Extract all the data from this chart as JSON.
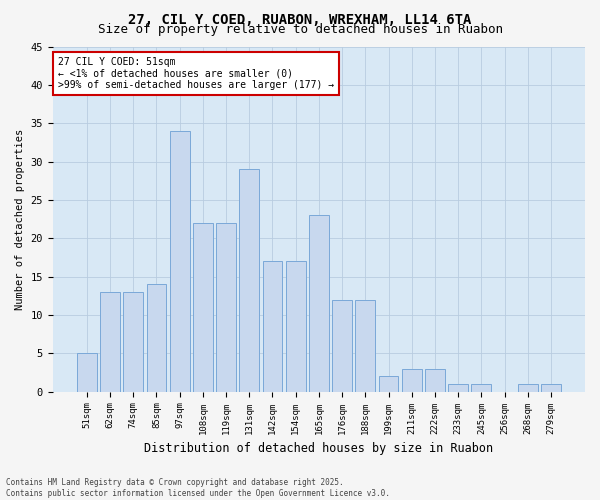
{
  "title": "27, CIL Y COED, RUABON, WREXHAM, LL14 6TA",
  "subtitle": "Size of property relative to detached houses in Ruabon",
  "xlabel": "Distribution of detached houses by size in Ruabon",
  "ylabel": "Number of detached properties",
  "categories": [
    "51sqm",
    "62sqm",
    "74sqm",
    "85sqm",
    "97sqm",
    "108sqm",
    "119sqm",
    "131sqm",
    "142sqm",
    "154sqm",
    "165sqm",
    "176sqm",
    "188sqm",
    "199sqm",
    "211sqm",
    "222sqm",
    "233sqm",
    "245sqm",
    "256sqm",
    "268sqm",
    "279sqm"
  ],
  "values": [
    5,
    13,
    13,
    14,
    34,
    22,
    22,
    29,
    17,
    17,
    23,
    12,
    12,
    2,
    3,
    3,
    1,
    1,
    0,
    1,
    1
  ],
  "bar_color": "#c8d8ee",
  "bar_edge_color": "#7aa8d8",
  "highlight_bar_index": 0,
  "background_color": "#d8e8f5",
  "grid_color": "#b8cce0",
  "annotation_text": "27 CIL Y COED: 51sqm\n← <1% of detached houses are smaller (0)\n>99% of semi-detached houses are larger (177) →",
  "annotation_box_facecolor": "#ffffff",
  "annotation_box_edge": "#cc0000",
  "ylim": [
    0,
    45
  ],
  "yticks": [
    0,
    5,
    10,
    15,
    20,
    25,
    30,
    35,
    40,
    45
  ],
  "title_fontsize": 10,
  "subtitle_fontsize": 9,
  "footnote": "Contains HM Land Registry data © Crown copyright and database right 2025.\nContains public sector information licensed under the Open Government Licence v3.0.",
  "fig_facecolor": "#f5f5f5"
}
